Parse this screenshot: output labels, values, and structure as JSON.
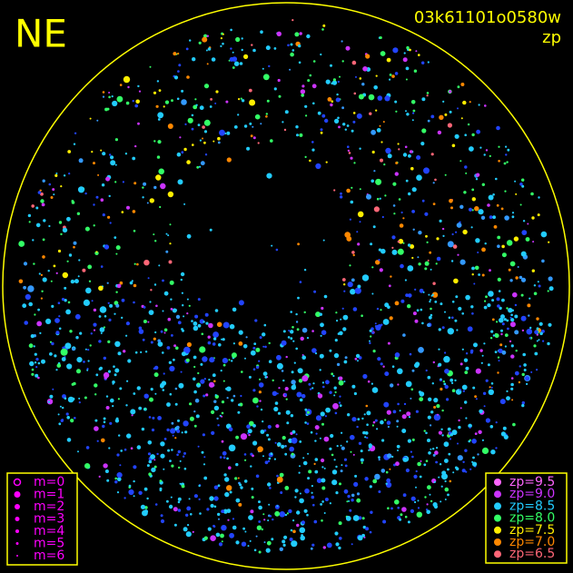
{
  "label": "NE",
  "title": "03k61101o0580w",
  "subtitle": "zp",
  "frame_color": "#ffff00",
  "magnitude_legend": {
    "marker_color": "#ff00ff",
    "items": [
      {
        "label": "m=0"
      },
      {
        "label": "m=1"
      },
      {
        "label": "m=2"
      },
      {
        "label": "m=3"
      },
      {
        "label": "m=4"
      },
      {
        "label": "m=5"
      },
      {
        "label": "m=6"
      }
    ]
  },
  "zp_legend": {
    "items": [
      {
        "label": "zp=9.5",
        "color": "#ff66ff"
      },
      {
        "label": "zp=9.0",
        "color": "#cc33ff"
      },
      {
        "label": "zp=8.5",
        "color": "#22ccff"
      },
      {
        "label": "zp=8.0",
        "color": "#33ff66"
      },
      {
        "label": "zp=7.5",
        "color": "#ffee00"
      },
      {
        "label": "zp=7.0",
        "color": "#ff8800"
      },
      {
        "label": "zp=6.5",
        "color": "#ff6677"
      }
    ]
  }
}
